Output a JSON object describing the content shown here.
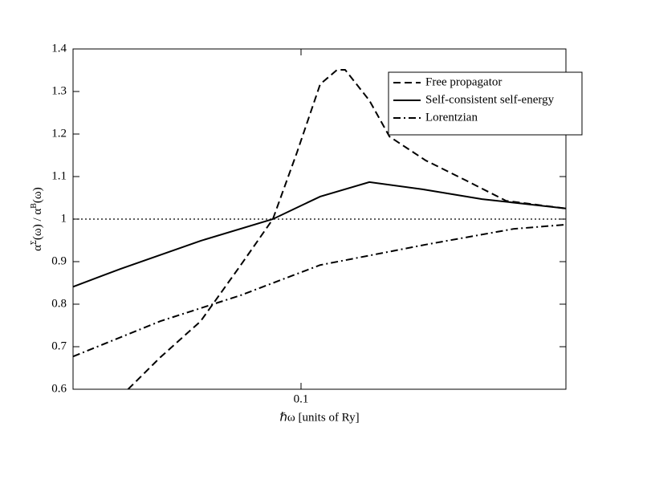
{
  "chart_data": {
    "type": "line",
    "x_label": "ℏω [units of Ry]",
    "y_label_parts": [
      "α",
      "Σ",
      "(ω) / α",
      "B",
      "(ω)"
    ],
    "xscale": "log",
    "xlim": [
      0.04,
      0.29
    ],
    "xticks": [
      0.1
    ],
    "ylim": [
      0.6,
      1.4
    ],
    "yticks": [
      0.6,
      0.7,
      0.8,
      0.9,
      1,
      1.1,
      1.2,
      1.3,
      1.4
    ],
    "hline": 1,
    "legend": "upper right",
    "series": [
      {
        "name": "Free propagator",
        "color": "#000000",
        "dash": "dashed",
        "x": [
          0.0499,
          0.0568,
          0.0668,
          0.0785,
          0.0893,
          0.0984,
          0.108,
          0.1156,
          0.1194,
          0.1316,
          0.1427,
          0.165,
          0.194,
          0.228,
          0.29
        ],
        "values": [
          0.6,
          0.675,
          0.76,
          0.892,
          1.0,
          1.157,
          1.317,
          1.351,
          1.351,
          1.279,
          1.194,
          1.138,
          1.091,
          1.043,
          1.025
        ]
      },
      {
        "name": "Self-consistent self-energy",
        "color": "#000000",
        "dash": "solid",
        "x": [
          0.04,
          0.0484,
          0.0668,
          0.0893,
          0.108,
          0.1316,
          0.163,
          0.207,
          0.29
        ],
        "values": [
          0.841,
          0.883,
          0.949,
          1.0,
          1.053,
          1.087,
          1.07,
          1.047,
          1.025
        ]
      },
      {
        "name": "Lorentzian",
        "color": "#000000",
        "dash": "dashdot",
        "x": [
          0.04,
          0.0568,
          0.0785,
          0.108,
          0.165,
          0.235,
          0.29
        ],
        "values": [
          0.677,
          0.76,
          0.821,
          0.892,
          0.94,
          0.977,
          0.987
        ]
      }
    ]
  }
}
